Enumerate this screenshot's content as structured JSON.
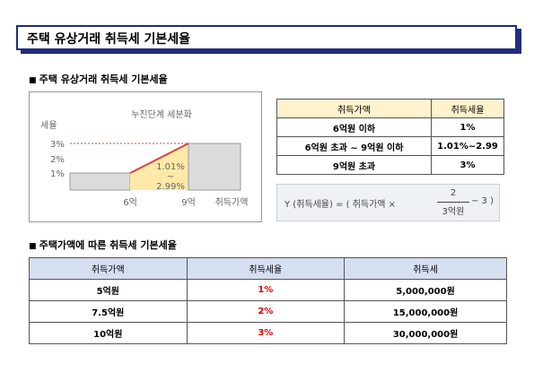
{
  "header": {
    "title": "주택 유상거래 취득세 기본세율"
  },
  "section1": {
    "heading": "주택 유상거래 취득세 기본세율",
    "diagram": {
      "y_label": "세율",
      "title": "누진단계 세분화",
      "y_ticks": [
        "3%",
        "2%",
        "1%"
      ],
      "x_labels": [
        "6억",
        "9억",
        "취득가액"
      ],
      "band_label": [
        "1.01%",
        "~",
        "2.99%"
      ]
    },
    "table": {
      "header": [
        "취득가액",
        "취득세율"
      ],
      "rows": [
        [
          "6억원 이하",
          "1%"
        ],
        [
          "6억원 초과 ~ 9억원 이하",
          "1.01%~2.99"
        ],
        [
          "9억원 초과",
          "3%"
        ]
      ]
    },
    "formula": {
      "lhs": "Y (취득세율) = ( 취득가액 ×",
      "numerator": "2",
      "denominator": "3억원",
      "rhs": "− 3 )"
    }
  },
  "section2": {
    "heading": "주택가액에 따른 취득세 기본세율",
    "table": {
      "header": [
        "취득가액",
        "취득세율",
        "취득세"
      ],
      "rows": [
        [
          "5억원",
          "1%",
          "5,000,000원"
        ],
        [
          "7.5억원",
          "2%",
          "15,000,000원"
        ],
        [
          "10억원",
          "3%",
          "30,000,000원"
        ]
      ]
    }
  }
}
